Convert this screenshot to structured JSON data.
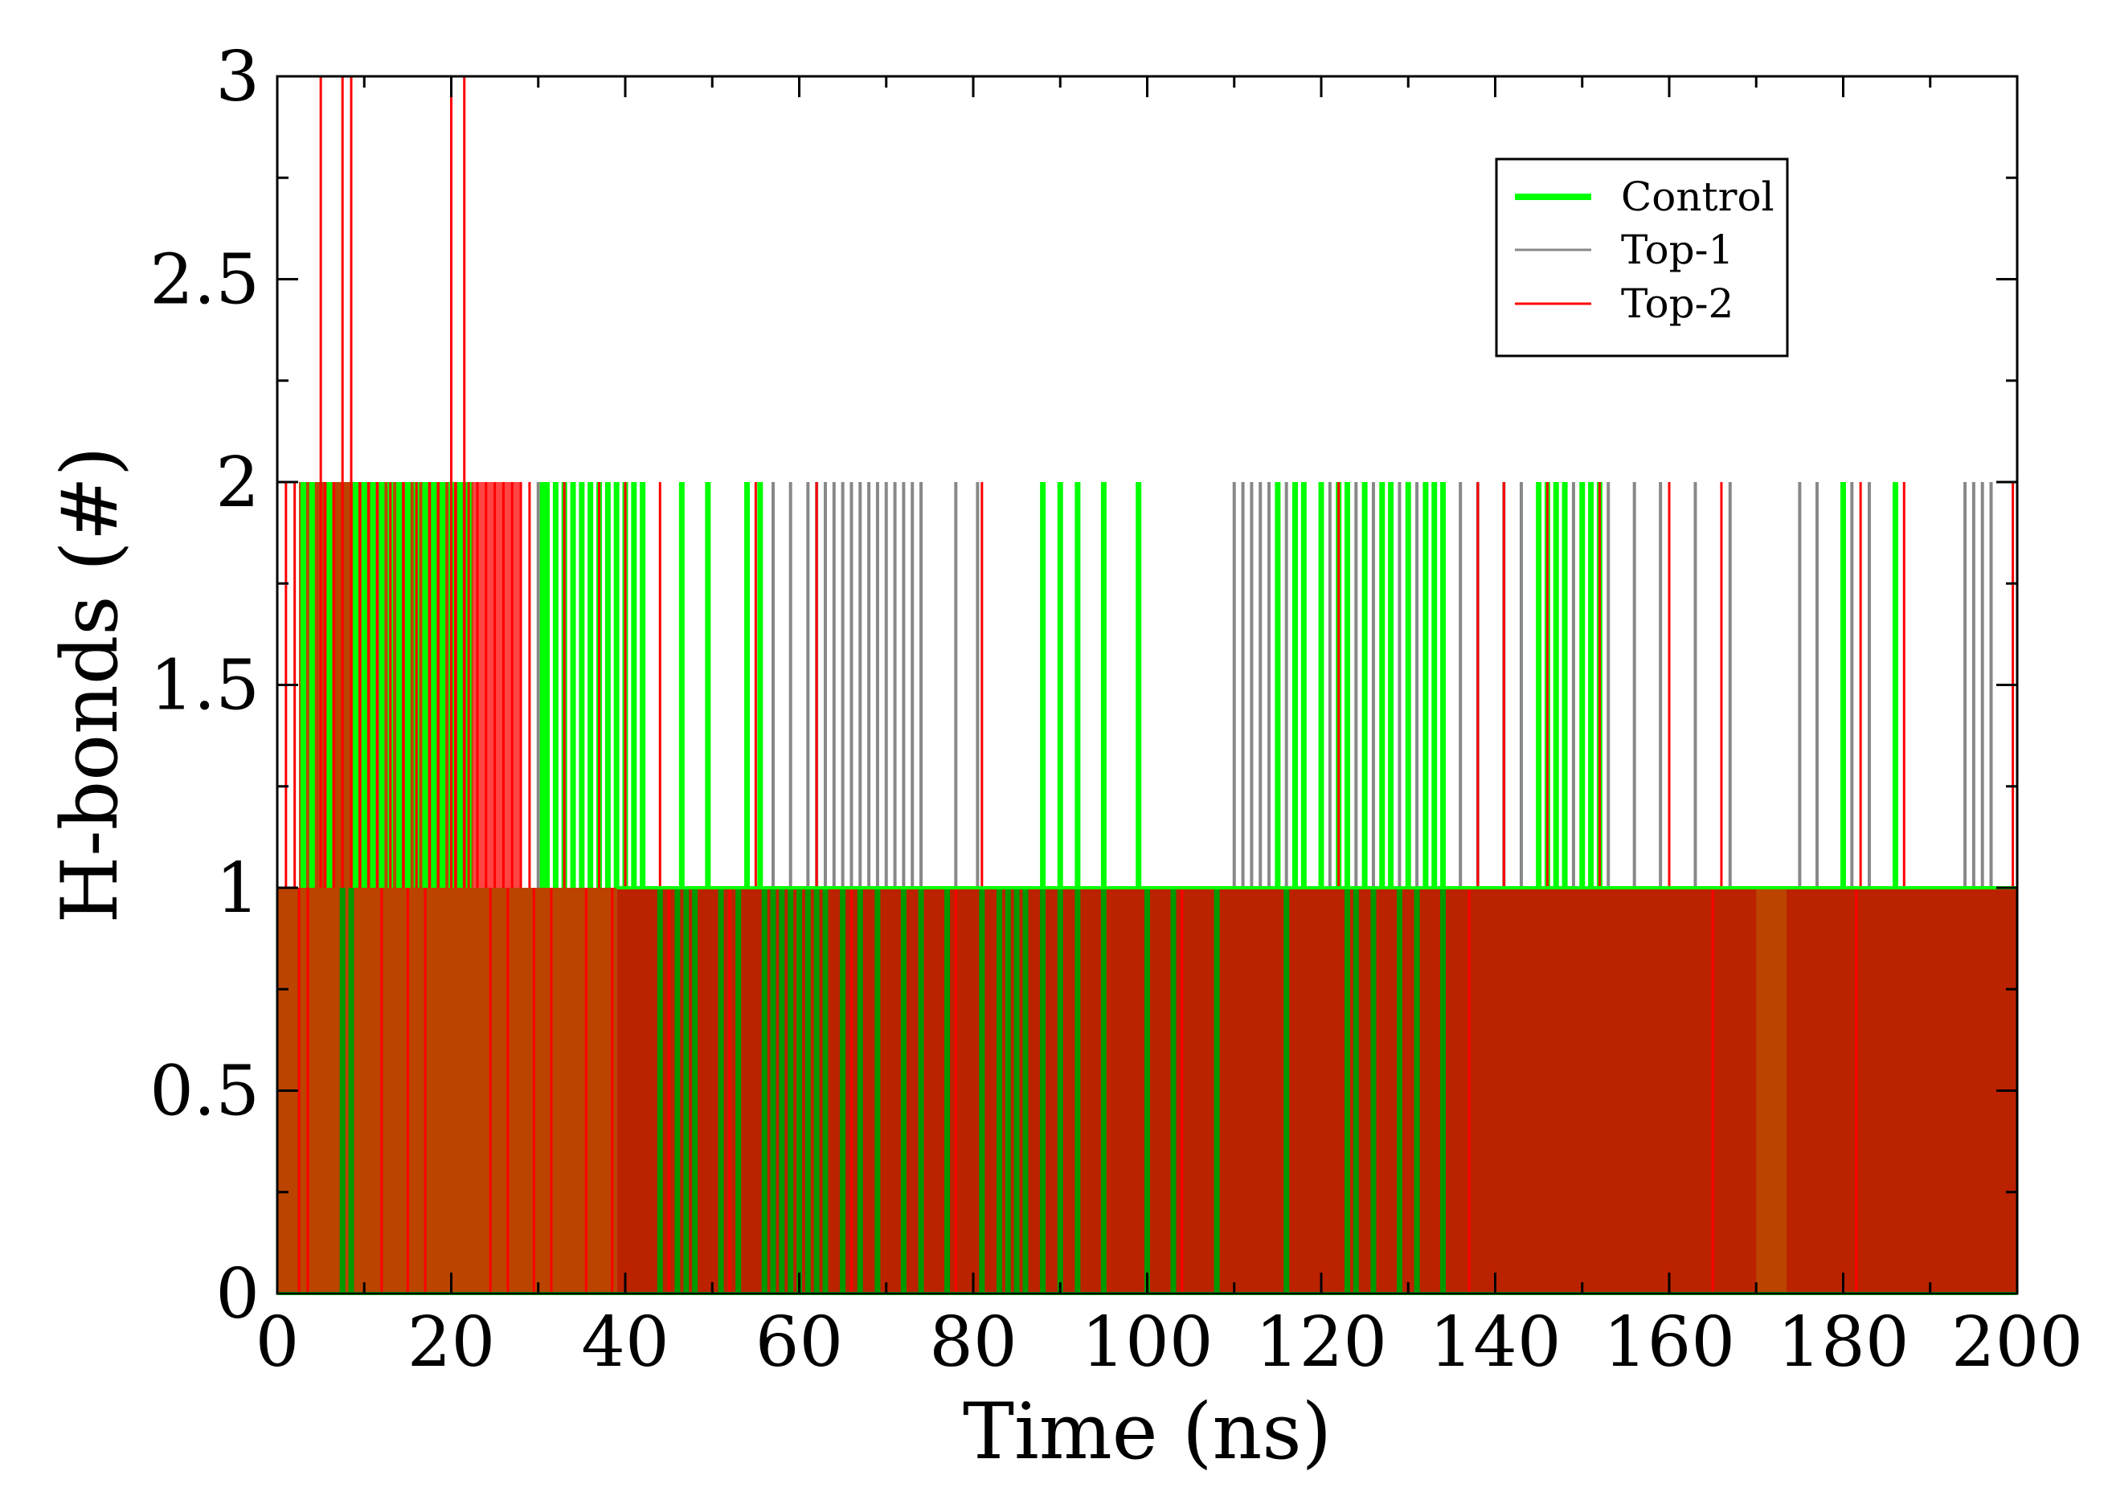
{
  "chart_data": {
    "type": "line",
    "title": "",
    "xlabel": "Time (ns)",
    "ylabel": "H-bonds (#)",
    "xlim": [
      0,
      200
    ],
    "ylim": [
      0,
      3
    ],
    "x_ticks": [
      0,
      20,
      40,
      60,
      80,
      100,
      120,
      140,
      160,
      180,
      200
    ],
    "x_tick_labels": [
      "0",
      "20",
      "40",
      "60",
      "80",
      "100",
      "120",
      "140",
      "160",
      "180",
      "200"
    ],
    "y_ticks": [
      0,
      0.5,
      1,
      1.5,
      2,
      2.5,
      3
    ],
    "y_tick_labels": [
      "0",
      "0.5",
      "1",
      "1.5",
      "2",
      "2.5",
      "3"
    ],
    "grid": false,
    "legend_position": "top-right",
    "series": [
      {
        "name": "Control",
        "color": "#00ff00",
        "baseline": 1,
        "peaks_to_2": [
          3,
          4,
          6,
          9,
          10,
          11,
          12,
          13,
          14,
          15,
          16,
          17,
          18,
          19,
          20,
          21,
          22,
          30.5,
          31,
          32,
          33,
          34,
          35,
          36,
          37,
          38,
          39,
          40,
          41,
          42,
          46.5,
          49.5,
          54,
          55.5,
          88,
          90,
          92,
          95,
          99,
          115,
          117,
          118,
          120,
          122,
          123,
          125,
          127,
          128,
          130,
          132,
          133,
          134,
          145,
          146,
          147,
          148,
          150,
          151,
          152,
          180,
          186
        ],
        "dips_to_0": [
          7.5,
          8.5,
          44,
          46,
          47,
          48,
          51,
          53,
          56,
          57,
          58,
          59,
          60,
          61,
          62,
          63,
          65,
          67,
          69,
          72,
          74,
          77,
          81,
          83,
          84,
          85,
          86,
          88,
          90,
          92,
          95,
          100,
          103,
          108,
          116,
          123,
          124,
          126,
          129,
          131,
          134
        ]
      },
      {
        "name": "Top-1",
        "color": "#888888",
        "baseline": 1,
        "peaks_to_2": [
          30,
          32,
          34,
          36,
          38,
          57,
          59,
          61,
          62,
          63,
          64,
          65,
          66,
          67,
          68,
          69,
          70,
          71,
          72,
          73,
          74,
          78,
          80.5,
          110,
          111,
          112,
          113,
          114,
          116,
          118,
          121,
          124,
          126,
          129,
          131,
          136,
          138,
          141,
          143,
          149,
          153,
          156,
          159,
          163,
          167,
          175,
          177,
          181,
          183,
          194,
          195,
          196,
          197
        ]
      },
      {
        "name": "Top-2",
        "color": "#ff0000",
        "baseline": 1,
        "peaks_to_3": [
          5,
          7.5,
          8.5,
          20,
          21.5
        ],
        "peaks_to_2": [
          1,
          2,
          5.5,
          6.5,
          9.5,
          10.5,
          11.5,
          13,
          14.5,
          16,
          17.5,
          18.5,
          20.5,
          22,
          23,
          24,
          25,
          26,
          27,
          28,
          29,
          33,
          37,
          40,
          44,
          55,
          62,
          81,
          122,
          138,
          141,
          146,
          152,
          160,
          166,
          182,
          187,
          199.5
        ],
        "dips_to_0": [
          2.5,
          3.5,
          12,
          15,
          17,
          24.5,
          26.5,
          29.5,
          31.5,
          35.5,
          38.5,
          45,
          52,
          66,
          78,
          104,
          137,
          165,
          181.5
        ]
      }
    ],
    "overlap_regions": [
      {
        "x_start": 0,
        "x_end": 39,
        "y_start": 0,
        "y_end": 1,
        "color": "#bb4400"
      },
      {
        "x_start": 2.5,
        "x_end": 23,
        "y_start": 1,
        "y_end": 2,
        "color": "#bb4400"
      },
      {
        "x_start": 22.5,
        "x_end": 28,
        "y_start": 1,
        "y_end": 2,
        "color": "#ff4444"
      },
      {
        "x_start": 39,
        "x_end": 200,
        "y_start": 0,
        "y_end": 1,
        "color": "#bb2200"
      },
      {
        "x_start": 170,
        "x_end": 173.5,
        "y_start": 0,
        "y_end": 1,
        "color": "#bb4400"
      }
    ]
  }
}
